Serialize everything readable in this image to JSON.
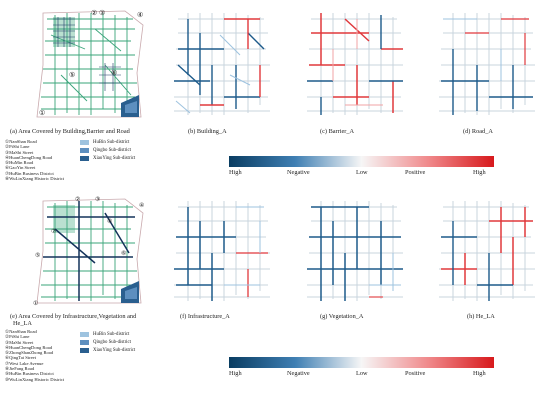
{
  "captions": {
    "a": "(a)  Area Covered by Building,Barrier and Road",
    "b": "(b)  Building_A",
    "c": "(c)  Barrier_A",
    "d": "(d)  Road_A",
    "e1": "(e)  Area Covered by Infrastructure,Vegetation and",
    "e2": "He_LA",
    "f": "(f)  Infrastructure_A",
    "g": "(g)  Vegetation_A",
    "h": "(h)  He_LA"
  },
  "map_labels_top": [
    "①",
    "②",
    "③",
    "④",
    "⑤",
    "⑥"
  ],
  "map_labels_bottom": [
    "①",
    "②",
    "③",
    "④",
    "⑤",
    "⑥",
    "⑦",
    "⑧"
  ],
  "roads_top": [
    "①NanShan Road",
    "②PiShi Lane",
    "③MaShi Street",
    "④HuanChengDong Road",
    "⑤HuMin Road",
    "⑥GaoYin Street",
    "⑦HuBin Business District",
    "⑧WuLinXiang Historic District"
  ],
  "roads_bottom": [
    "①NanShan Road",
    "②PiShi Lane",
    "③MaShi Street",
    "④HuanChengDong Road",
    "⑤ZhongShanZhong Road",
    "⑥QingTai Street",
    "⑦West Lake Avenue",
    "⑧JieFang Road",
    "⑨HuBin Business District",
    "⑩WuLinXiang Historic District"
  ],
  "districts": [
    {
      "label": "HuBin Sub-district",
      "color": "#9ec3df"
    },
    {
      "label": "Qingbo Sub-district",
      "color": "#5d8fbf"
    },
    {
      "label": "XiaoYing Sub-district",
      "color": "#2a5f8f"
    }
  ],
  "colorbar": {
    "labels": [
      "High",
      "Negative",
      "Low",
      "Positive",
      "High"
    ],
    "colors": [
      "#0a3d62",
      "#f6f6f6",
      "#d7191c"
    ]
  },
  "colors": {
    "green_road": "#3aa57a",
    "dark_road": "#14325a",
    "boundary": "#c9a9ad",
    "negative": "#1d5a8a",
    "positive": "#e0383c",
    "neutral": "#c9d4de"
  }
}
